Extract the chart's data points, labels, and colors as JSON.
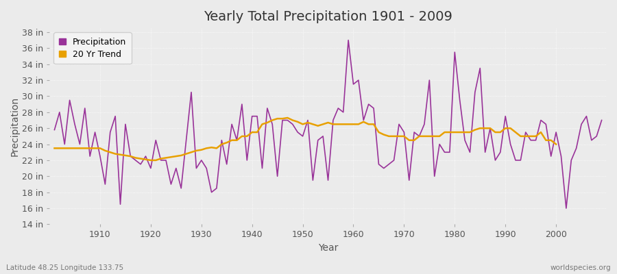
{
  "title": "Yearly Total Precipitation 1901 - 2009",
  "xlabel": "Year",
  "ylabel": "Precipitation",
  "x_label_bottom_left": "Latitude 48.25 Longitude 133.75",
  "x_label_bottom_right": "worldspecies.org",
  "years": [
    1901,
    1902,
    1903,
    1904,
    1905,
    1906,
    1907,
    1908,
    1909,
    1910,
    1911,
    1912,
    1913,
    1914,
    1915,
    1916,
    1917,
    1918,
    1919,
    1920,
    1921,
    1922,
    1923,
    1924,
    1925,
    1926,
    1927,
    1928,
    1929,
    1930,
    1931,
    1932,
    1933,
    1934,
    1935,
    1936,
    1937,
    1938,
    1939,
    1940,
    1941,
    1942,
    1943,
    1944,
    1945,
    1946,
    1947,
    1948,
    1949,
    1950,
    1951,
    1952,
    1953,
    1954,
    1955,
    1956,
    1957,
    1958,
    1959,
    1960,
    1961,
    1962,
    1963,
    1964,
    1965,
    1966,
    1967,
    1968,
    1969,
    1970,
    1971,
    1972,
    1973,
    1974,
    1975,
    1976,
    1977,
    1978,
    1979,
    1980,
    1981,
    1982,
    1983,
    1984,
    1985,
    1986,
    1987,
    1988,
    1989,
    1990,
    1991,
    1992,
    1993,
    1994,
    1995,
    1996,
    1997,
    1998,
    1999,
    2000,
    2001,
    2002,
    2003,
    2004,
    2005,
    2006,
    2007,
    2008,
    2009
  ],
  "precipitation": [
    25.8,
    28.0,
    24.0,
    29.5,
    26.5,
    24.0,
    28.5,
    22.5,
    25.5,
    22.5,
    19.0,
    25.5,
    27.5,
    16.5,
    26.5,
    22.5,
    22.0,
    21.5,
    22.5,
    21.0,
    24.5,
    22.0,
    22.0,
    19.0,
    21.0,
    18.5,
    24.5,
    30.5,
    21.0,
    22.0,
    21.0,
    18.0,
    18.5,
    24.5,
    21.5,
    26.5,
    24.5,
    29.0,
    22.0,
    27.5,
    27.5,
    21.0,
    28.5,
    26.5,
    20.0,
    27.0,
    27.0,
    26.5,
    25.5,
    25.0,
    27.0,
    19.5,
    24.5,
    25.0,
    19.5,
    27.0,
    28.5,
    28.0,
    37.0,
    31.5,
    32.0,
    27.0,
    29.0,
    28.5,
    21.5,
    21.0,
    21.5,
    22.0,
    26.5,
    25.5,
    19.5,
    25.5,
    25.0,
    26.5,
    32.0,
    20.0,
    24.0,
    23.0,
    23.0,
    35.5,
    29.5,
    24.5,
    23.0,
    30.5,
    33.5,
    23.0,
    26.0,
    22.0,
    23.0,
    27.5,
    24.0,
    22.0,
    22.0,
    25.5,
    24.5,
    24.5,
    27.0,
    26.5,
    22.5,
    25.5,
    22.5,
    16.0,
    22.0,
    23.5,
    26.5,
    27.5,
    24.5,
    25.0,
    27.0
  ],
  "trend": [
    23.5,
    23.5,
    23.5,
    23.5,
    23.5,
    23.5,
    23.5,
    23.5,
    23.5,
    23.5,
    23.2,
    23.0,
    22.8,
    22.7,
    22.6,
    22.5,
    22.3,
    22.2,
    22.1,
    22.0,
    22.0,
    22.2,
    22.3,
    22.4,
    22.5,
    22.6,
    22.8,
    23.0,
    23.2,
    23.3,
    23.5,
    23.6,
    23.5,
    24.0,
    24.2,
    24.5,
    24.5,
    25.0,
    25.0,
    25.5,
    25.5,
    26.5,
    26.7,
    27.0,
    27.2,
    27.2,
    27.3,
    27.0,
    26.8,
    26.5,
    26.7,
    26.5,
    26.3,
    26.5,
    26.7,
    26.5,
    26.5,
    26.5,
    26.5,
    26.5,
    26.5,
    26.8,
    26.5,
    26.5,
    25.5,
    25.2,
    25.0,
    25.0,
    25.0,
    25.0,
    24.5,
    24.5,
    25.0,
    25.0,
    25.0,
    25.0,
    25.0,
    25.5,
    25.5,
    25.5,
    25.5,
    25.5,
    25.5,
    25.8,
    26.0,
    26.0,
    26.0,
    25.5,
    25.5,
    26.0,
    26.0,
    25.5,
    25.0,
    25.0,
    25.0,
    25.0,
    25.5,
    24.5,
    24.5,
    24.0,
    null,
    null,
    null,
    null,
    null,
    null,
    null,
    null,
    null
  ],
  "precipitation_color": "#993399",
  "trend_color": "#E8A000",
  "background_color": "#EBEBEB",
  "plot_bg_color": "#EBEBEB",
  "grid_color": "#FFFFFF",
  "ylim_min": 14,
  "ylim_max": 38,
  "ytick_step": 2,
  "title_fontsize": 14,
  "axis_fontsize": 10,
  "tick_fontsize": 9,
  "legend_fontsize": 9
}
